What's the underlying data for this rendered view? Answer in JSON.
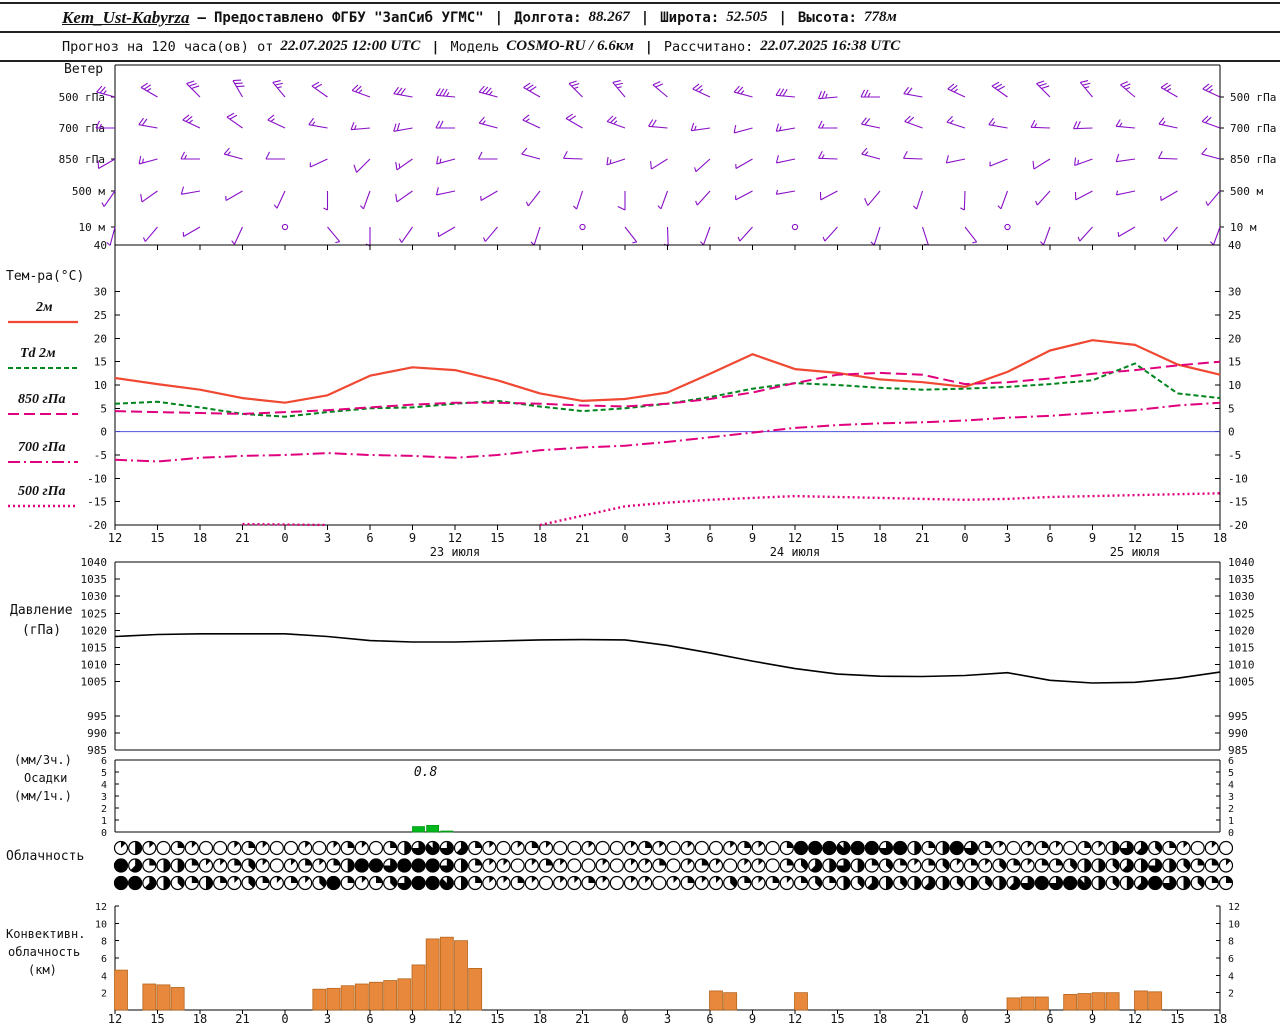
{
  "colors": {
    "wind": "#8a10c8",
    "pressure": "#000000",
    "precip": "#00b81e",
    "precip_edge": "#009914",
    "convective": "#e8883c",
    "convective_edge": "#b5651d",
    "zero_line": "#5050dc",
    "frame": "#000000"
  },
  "header": {
    "row1": {
      "station": "Kem_Ust-Kabyrza",
      "dash": "—",
      "provider": "Предоставлено ФГБУ \"ЗапСиб УГМС\"",
      "sep": "|",
      "lon_label": "Долгота:",
      "lon_value": "88.267",
      "lat_label": "Широта:",
      "lat_value": "52.505",
      "alt_label": "Высота:",
      "alt_value": "778м"
    },
    "row2": {
      "forecast_label": "Прогноз на 120 часа(ов) от",
      "forecast_time": "22.07.2025 12:00 UTC",
      "sep": "|",
      "model_label": "Модель",
      "model_value": "COSMO-RU / 6.6км",
      "calc_label": "Рассчитано:",
      "calc_value": "22.07.2025 16:38 UTC"
    }
  },
  "labels": {
    "wind_title": "Ветер",
    "temp_title": "Тем-ра(°C)",
    "legend": [
      "2м",
      "Td 2м",
      "850 гПа",
      "700 гПа",
      "500 гПа"
    ],
    "pressure_line1": "Давление",
    "pressure_line2": "(гПа)",
    "precip_line1": "(мм/3ч.)",
    "precip_line2": "Осадки",
    "precip_line3": "(мм/1ч.)",
    "cloud_title": "Облачность",
    "conv_line1": "Конвективн.",
    "conv_line2": "облачность",
    "conv_line3": "(км)"
  },
  "chart_data": {
    "time": {
      "hour_labels": [
        "12",
        "15",
        "18",
        "21",
        "0",
        "3",
        "6",
        "9",
        "12",
        "15",
        "18",
        "21",
        "0",
        "3",
        "6",
        "9",
        "12",
        "15",
        "18",
        "21",
        "0",
        "3",
        "6",
        "9",
        "12",
        "15",
        "18"
      ],
      "step_hours": 3,
      "date_labels": [
        {
          "label": "23 июля",
          "index": 8
        },
        {
          "label": "24 июля",
          "index": 16
        },
        {
          "label": "25 июля",
          "index": 24
        }
      ]
    },
    "wind": {
      "type": "wind-barbs",
      "title": "Ветер",
      "rows": [
        {
          "label": "500 гПа",
          "dir": [
            285,
            300,
            315,
            330,
            320,
            305,
            290,
            280,
            275,
            285,
            300,
            315,
            320,
            310,
            295,
            285,
            275,
            265,
            270,
            280,
            295,
            305,
            315,
            320,
            310,
            300,
            295
          ],
          "spd": [
            12,
            14,
            16,
            15,
            12,
            10,
            12,
            15,
            17,
            18,
            16,
            14,
            12,
            10,
            12,
            14,
            16,
            14,
            12,
            10,
            12,
            15,
            16,
            14,
            12,
            12,
            14
          ]
        },
        {
          "label": "700 гПа",
          "dir": [
            270,
            280,
            295,
            305,
            295,
            280,
            265,
            260,
            270,
            285,
            295,
            300,
            290,
            275,
            262,
            255,
            260,
            270,
            282,
            290,
            288,
            280,
            272,
            268,
            275,
            282,
            290
          ],
          "spd": [
            8,
            10,
            12,
            11,
            9,
            8,
            9,
            11,
            10,
            8,
            8,
            10,
            12,
            10,
            8,
            6,
            7,
            9,
            11,
            10,
            8,
            8,
            9,
            10,
            8,
            8,
            10
          ]
        },
        {
          "label": "850 гПа",
          "dir": [
            240,
            255,
            270,
            285,
            270,
            245,
            225,
            235,
            255,
            270,
            285,
            272,
            252,
            238,
            228,
            240,
            258,
            272,
            285,
            272,
            258,
            248,
            238,
            250,
            262,
            272,
            285
          ],
          "spd": [
            6,
            7,
            8,
            7,
            5,
            4,
            5,
            7,
            8,
            6,
            5,
            6,
            8,
            6,
            4,
            4,
            6,
            8,
            8,
            6,
            5,
            4,
            6,
            7,
            6,
            5,
            6
          ]
        },
        {
          "label": "500 м",
          "dir": [
            215,
            235,
            260,
            240,
            205,
            180,
            200,
            235,
            258,
            240,
            218,
            198,
            180,
            200,
            222,
            242,
            260,
            242,
            220,
            198,
            182,
            200,
            222,
            242,
            258,
            240,
            220
          ],
          "spd": [
            4,
            5,
            6,
            4,
            2,
            2,
            4,
            6,
            6,
            4,
            3,
            4,
            5,
            4,
            2,
            2,
            4,
            6,
            5,
            4,
            2,
            2,
            4,
            5,
            4,
            3,
            4
          ]
        },
        {
          "label": "10 м",
          "dir": [
            195,
            220,
            240,
            205,
            160,
            140,
            180,
            215,
            240,
            220,
            198,
            160,
            142,
            178,
            200,
            222,
            242,
            222,
            198,
            162,
            142,
            178,
            200,
            222,
            240,
            220,
            200
          ],
          "spd": [
            2,
            4,
            4,
            2,
            0,
            2,
            3,
            4,
            4,
            3,
            2,
            0,
            2,
            3,
            2,
            2,
            0,
            2,
            4,
            3,
            2,
            0,
            2,
            4,
            4,
            2,
            2
          ]
        }
      ]
    },
    "temperature": {
      "type": "line",
      "ylabel": "Тем-ра(°C)",
      "ylim": [
        -20,
        40
      ],
      "yticks": [
        40,
        30,
        25,
        20,
        15,
        10,
        5,
        0,
        -5,
        -10,
        -15,
        -20
      ],
      "zero_line": 0,
      "series": [
        {
          "name": "2м",
          "color": "#f04832",
          "dash": null,
          "width": 2.2,
          "values": [
            11.5,
            10.2,
            9.0,
            7.2,
            6.2,
            7.8,
            12.0,
            13.8,
            13.2,
            11.0,
            8.2,
            6.6,
            7.0,
            8.4,
            12.4,
            16.6,
            13.4,
            12.6,
            11.2,
            10.6,
            9.6,
            12.8,
            17.4,
            19.6,
            18.6,
            14.4,
            12.2
          ]
        },
        {
          "name": "Td 2м",
          "color": "#00841e",
          "dash": "5,3",
          "width": 2,
          "values": [
            6.0,
            6.4,
            5.2,
            3.8,
            3.2,
            4.2,
            5.0,
            5.2,
            6.0,
            6.6,
            5.4,
            4.4,
            5.0,
            6.0,
            7.4,
            9.2,
            10.4,
            10.0,
            9.4,
            9.0,
            9.2,
            9.6,
            10.2,
            11.0,
            14.6,
            8.2,
            7.2
          ]
        },
        {
          "name": "850 гПа",
          "color": "#e0007e",
          "dash": "11,5",
          "width": 2,
          "values": [
            4.4,
            4.2,
            4.0,
            3.8,
            4.2,
            4.6,
            5.2,
            5.8,
            6.2,
            6.2,
            6.0,
            5.6,
            5.4,
            6.0,
            7.0,
            8.4,
            10.4,
            12.2,
            12.6,
            12.2,
            10.2,
            10.6,
            11.4,
            12.4,
            13.2,
            14.2,
            15.0
          ]
        },
        {
          "name": "700 гПа",
          "color": "#e0007e",
          "dash": "12,4,2,4",
          "width": 2,
          "values": [
            -6.0,
            -6.4,
            -5.6,
            -5.2,
            -5.0,
            -4.6,
            -5.0,
            -5.2,
            -5.6,
            -5.0,
            -4.0,
            -3.4,
            -3.0,
            -2.2,
            -1.2,
            -0.2,
            0.8,
            1.4,
            1.8,
            2.0,
            2.4,
            3.0,
            3.4,
            4.0,
            4.6,
            5.6,
            6.2
          ]
        },
        {
          "name": "500 гПа",
          "color": "#e0007e",
          "dash": "2,3",
          "width": 2.4,
          "values": [
            null,
            null,
            null,
            -19.8,
            -19.9,
            -20.0,
            null,
            null,
            null,
            null,
            -20.0,
            -18.0,
            -16.0,
            -15.2,
            -14.6,
            -14.2,
            -13.8,
            -14.0,
            -14.2,
            -14.4,
            -14.6,
            -14.4,
            -14.0,
            -13.8,
            -13.6,
            -13.4,
            -13.2
          ]
        }
      ]
    },
    "pressure": {
      "type": "line",
      "ylabel": "Давление (гПа)",
      "ylim": [
        985,
        1040
      ],
      "yticks": [
        1040,
        1035,
        1030,
        1025,
        1020,
        1015,
        1010,
        1005,
        995,
        990,
        985
      ],
      "values": [
        1018.2,
        1018.8,
        1019.0,
        1019.0,
        1019.0,
        1018.2,
        1017.0,
        1016.6,
        1016.6,
        1016.9,
        1017.2,
        1017.3,
        1017.2,
        1015.6,
        1013.4,
        1011.0,
        1008.8,
        1007.2,
        1006.6,
        1006.5,
        1006.8,
        1007.6,
        1005.4,
        1004.6,
        1004.8,
        1006.0,
        1007.8
      ]
    },
    "precip": {
      "type": "bar",
      "ylabel": "Осадки (мм/1ч.)",
      "ylim": [
        0,
        6
      ],
      "yticks": [
        6,
        5,
        4,
        3,
        2,
        1,
        0
      ],
      "bars": [
        {
          "h": 21,
          "v": 0.45
        },
        {
          "h": 22,
          "v": 0.55
        },
        {
          "h": 23,
          "v": 0.08
        }
      ],
      "annotation": {
        "text": "0.8",
        "h": 21.5,
        "v": 5
      }
    },
    "cloud": {
      "type": "symbols",
      "title": "Облачность",
      "unit": "oktas",
      "rows": [
        [
          1,
          4,
          1,
          0,
          2,
          1,
          0,
          0,
          1,
          2,
          1,
          0,
          0,
          1,
          0,
          1,
          2,
          1,
          0,
          2,
          4,
          6,
          7,
          6,
          5,
          2,
          1,
          0,
          1,
          2,
          1,
          0,
          0,
          1,
          0,
          0,
          1,
          2,
          1,
          0,
          1,
          0,
          0,
          1,
          2,
          1,
          0,
          2,
          8,
          8,
          8,
          7,
          8,
          8,
          6,
          8,
          4,
          2,
          4,
          8,
          6,
          2,
          1,
          0,
          1,
          2,
          1,
          0,
          2,
          1,
          4,
          6,
          5,
          3,
          2,
          1,
          0,
          1,
          0
        ],
        [
          8,
          5,
          2,
          4,
          4,
          2,
          1,
          1,
          2,
          3,
          1,
          0,
          1,
          2,
          1,
          2,
          4,
          8,
          8,
          6,
          8,
          8,
          8,
          6,
          4,
          2,
          1,
          1,
          0,
          1,
          2,
          1,
          0,
          0,
          1,
          0,
          1,
          1,
          2,
          0,
          1,
          2,
          1,
          0,
          1,
          1,
          0,
          2,
          3,
          5,
          4,
          6,
          4,
          2,
          3,
          2,
          1,
          2,
          3,
          1,
          2,
          1,
          3,
          2,
          1,
          2,
          2,
          3,
          4,
          4,
          3,
          5,
          4,
          6,
          4,
          3,
          2,
          2,
          1
        ],
        [
          8,
          8,
          5,
          4,
          3,
          2,
          4,
          2,
          1,
          3,
          2,
          1,
          2,
          1,
          3,
          8,
          2,
          1,
          2,
          3,
          6,
          8,
          8,
          7,
          4,
          2,
          1,
          1,
          2,
          1,
          0,
          1,
          1,
          2,
          1,
          0,
          1,
          1,
          0,
          1,
          2,
          1,
          1,
          3,
          2,
          1,
          2,
          1,
          2,
          3,
          2,
          4,
          3,
          5,
          4,
          3,
          4,
          5,
          4,
          3,
          4,
          3,
          4,
          5,
          6,
          8,
          6,
          8,
          7,
          4,
          3,
          4,
          5,
          8,
          6,
          4,
          3,
          2,
          2
        ]
      ]
    },
    "convective": {
      "type": "bar",
      "ylabel": "Конвективн. облачность (км)",
      "ylim": [
        0,
        12
      ],
      "yticks": [
        12,
        10,
        8,
        6,
        4,
        2
      ],
      "values": [
        4.6,
        0,
        3.0,
        2.9,
        2.6,
        0,
        0,
        0,
        0,
        0,
        0,
        0,
        0,
        0,
        2.4,
        2.5,
        2.8,
        3.0,
        3.2,
        3.4,
        3.6,
        5.2,
        8.2,
        8.4,
        8.0,
        4.8,
        0,
        0,
        0,
        0,
        0,
        0,
        0,
        0,
        0,
        0,
        0,
        0,
        0,
        0,
        0,
        0,
        2.2,
        2.0,
        0,
        0,
        0,
        0,
        2.0,
        0,
        0,
        0,
        0,
        0,
        0,
        0,
        0,
        0,
        0,
        0,
        0,
        0,
        0,
        1.4,
        1.5,
        1.5,
        0,
        1.8,
        1.9,
        2.0,
        2.0,
        0,
        2.2,
        2.1,
        0,
        0,
        0,
        0,
        0
      ]
    }
  }
}
